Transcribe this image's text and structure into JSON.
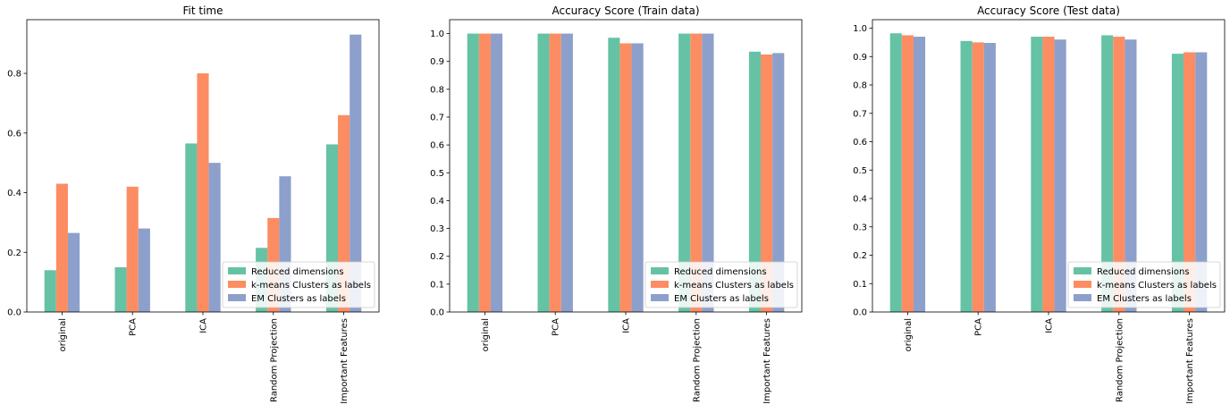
{
  "colors": {
    "Reduced dimensions": "#66c2a5",
    "k-means Clusters as labels": "#fc8d62",
    "EM Clusters as labels": "#8da0cb"
  },
  "chart_data": [
    {
      "type": "bar",
      "title": "Fit time",
      "xlabel": "",
      "ylabel": "",
      "categories": [
        "original",
        "PCA",
        "ICA",
        "Random Projection",
        "Important Features"
      ],
      "series": [
        {
          "name": "Reduced dimensions",
          "values": [
            0.14,
            0.15,
            0.565,
            0.215,
            0.562
          ]
        },
        {
          "name": "k-means Clusters as labels",
          "values": [
            0.43,
            0.42,
            0.8,
            0.315,
            0.66
          ]
        },
        {
          "name": "EM Clusters as labels",
          "values": [
            0.265,
            0.28,
            0.5,
            0.455,
            0.93
          ]
        }
      ],
      "ylim": [
        0,
        0.98
      ],
      "yticks": [
        0.0,
        0.2,
        0.4,
        0.6,
        0.8
      ],
      "ytick_labels": [
        "0.0",
        "0.2",
        "0.4",
        "0.6",
        "0.8"
      ],
      "grid": false,
      "legend": "lower right"
    },
    {
      "type": "bar",
      "title": "Accuracy Score (Train data)",
      "xlabel": "",
      "ylabel": "",
      "categories": [
        "original",
        "PCA",
        "ICA",
        "Random Projection",
        "Important Features"
      ],
      "series": [
        {
          "name": "Reduced dimensions",
          "values": [
            1.0,
            1.0,
            0.985,
            1.0,
            0.935
          ]
        },
        {
          "name": "k-means Clusters as labels",
          "values": [
            1.0,
            1.0,
            0.965,
            1.0,
            0.925
          ]
        },
        {
          "name": "EM Clusters as labels",
          "values": [
            1.0,
            1.0,
            0.965,
            1.0,
            0.93
          ]
        }
      ],
      "ylim": [
        0,
        1.05
      ],
      "yticks": [
        0.0,
        0.1,
        0.2,
        0.3,
        0.4,
        0.5,
        0.6,
        0.7,
        0.8,
        0.9,
        1.0
      ],
      "ytick_labels": [
        "0.0",
        "0.1",
        "0.2",
        "0.3",
        "0.4",
        "0.5",
        "0.6",
        "0.7",
        "0.8",
        "0.9",
        "1.0"
      ],
      "grid": false,
      "legend": "lower right"
    },
    {
      "type": "bar",
      "title": "Accuracy Score (Test data)",
      "xlabel": "",
      "ylabel": "",
      "categories": [
        "original",
        "PCA",
        "ICA",
        "Random Projection",
        "Important Features"
      ],
      "series": [
        {
          "name": "Reduced dimensions",
          "values": [
            0.982,
            0.955,
            0.97,
            0.975,
            0.91
          ]
        },
        {
          "name": "k-means Clusters as labels",
          "values": [
            0.975,
            0.95,
            0.97,
            0.97,
            0.915
          ]
        },
        {
          "name": "EM Clusters as labels",
          "values": [
            0.97,
            0.948,
            0.96,
            0.96,
            0.915
          ]
        }
      ],
      "ylim": [
        0,
        1.03
      ],
      "yticks": [
        0.0,
        0.1,
        0.2,
        0.3,
        0.4,
        0.5,
        0.6,
        0.7,
        0.8,
        0.9,
        1.0
      ],
      "ytick_labels": [
        "0.0",
        "0.1",
        "0.2",
        "0.3",
        "0.4",
        "0.5",
        "0.6",
        "0.7",
        "0.8",
        "0.9",
        "1.0"
      ],
      "grid": false,
      "legend": "lower right"
    }
  ]
}
